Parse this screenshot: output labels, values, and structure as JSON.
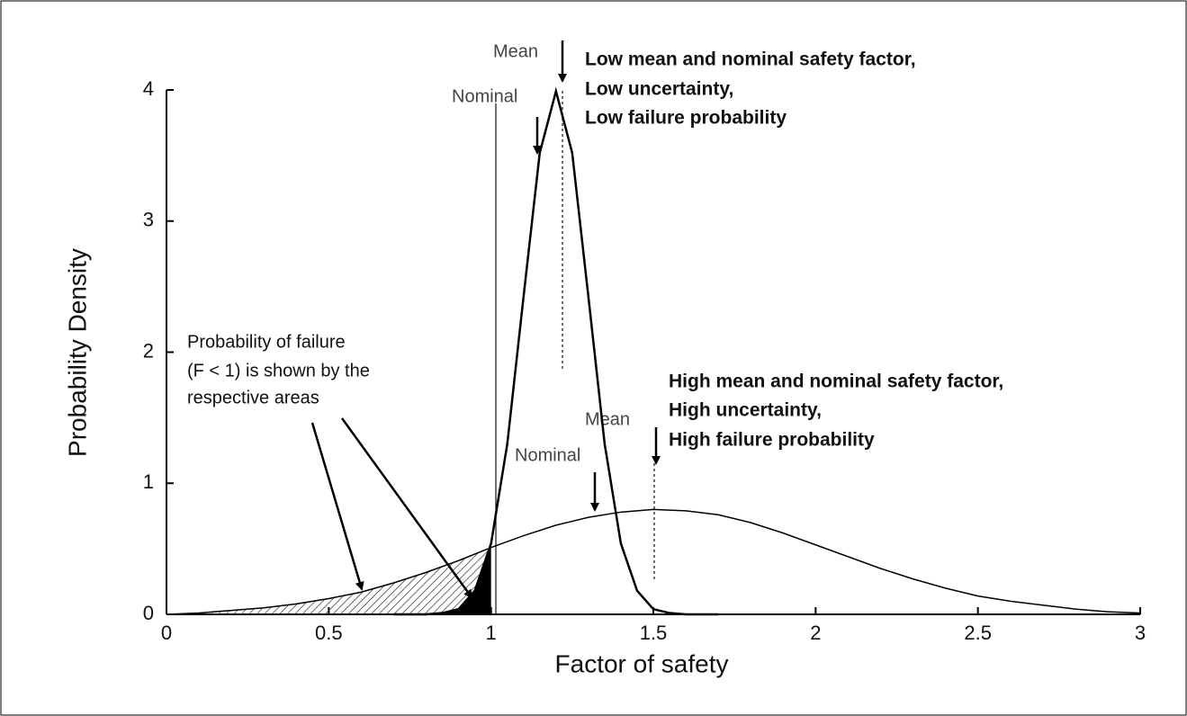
{
  "chart_data": {
    "type": "line",
    "xlabel": "Factor of safety",
    "ylabel": "Probability Density",
    "xlim": [
      0,
      3
    ],
    "ylim": [
      0,
      4
    ],
    "xticks": [
      0,
      0.5,
      1,
      1.5,
      2,
      2.5,
      3
    ],
    "yticks": [
      0,
      1,
      2,
      3,
      4
    ],
    "series": [
      {
        "color": "#000000",
        "x": [
          0.7,
          0.8,
          0.85,
          0.9,
          0.95,
          1.0,
          1.05,
          1.1,
          1.15,
          1.2,
          1.25,
          1.3,
          1.35,
          1.4,
          1.45,
          1.5,
          1.55,
          1.6,
          1.7
        ],
        "values": [
          0,
          0,
          0.01,
          0.04,
          0.18,
          0.54,
          1.3,
          2.42,
          3.52,
          3.99,
          3.52,
          2.42,
          1.3,
          0.54,
          0.18,
          0.04,
          0.01,
          0,
          0
        ]
      },
      {
        "color": "#000000",
        "x": [
          0,
          0.1,
          0.2,
          0.3,
          0.4,
          0.5,
          0.6,
          0.7,
          0.8,
          0.9,
          1.0,
          1.1,
          1.2,
          1.3,
          1.4,
          1.5,
          1.6,
          1.7,
          1.8,
          1.9,
          2.0,
          2.1,
          2.2,
          2.3,
          2.4,
          2.5,
          2.6,
          2.7,
          2.8,
          2.9,
          3.0
        ],
        "values": [
          0,
          0.01,
          0.03,
          0.05,
          0.08,
          0.12,
          0.17,
          0.24,
          0.32,
          0.41,
          0.51,
          0.6,
          0.68,
          0.74,
          0.78,
          0.8,
          0.79,
          0.76,
          0.7,
          0.62,
          0.53,
          0.44,
          0.35,
          0.27,
          0.2,
          0.14,
          0.1,
          0.07,
          0.04,
          0.02,
          0.01
        ]
      }
    ],
    "annotations": {
      "mean_low": "Mean",
      "nominal_low": "Nominal",
      "low_block": [
        "Low mean and nominal safety factor,",
        "Low uncertainty,",
        "Low failure probability"
      ],
      "failure_block": [
        "Probability of failure",
        "(F < 1) is shown by the",
        "respective areas"
      ],
      "mean_high": "Mean",
      "nominal_high": "Nominal",
      "high_block": [
        "High mean and nominal safety factor,",
        "High uncertainty,",
        "High failure probability"
      ]
    }
  }
}
